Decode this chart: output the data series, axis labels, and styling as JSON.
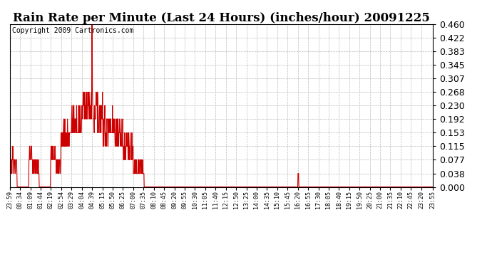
{
  "title": "Rain Rate per Minute (Last 24 Hours) (inches/hour) 20091225",
  "copyright": "Copyright 2009 Cartronics.com",
  "line_color": "#cc0000",
  "bg_color": "#ffffff",
  "grid_color": "#bbbbbb",
  "ylim": [
    0.0,
    0.46
  ],
  "yticks": [
    0.0,
    0.038,
    0.077,
    0.115,
    0.153,
    0.192,
    0.23,
    0.268,
    0.307,
    0.345,
    0.383,
    0.422,
    0.46
  ],
  "xtick_labels": [
    "23:59",
    "00:34",
    "01:09",
    "01:44",
    "02:19",
    "02:54",
    "03:29",
    "04:04",
    "04:39",
    "05:15",
    "05:50",
    "06:25",
    "07:00",
    "07:35",
    "08:10",
    "08:45",
    "09:20",
    "09:55",
    "10:30",
    "11:05",
    "11:40",
    "12:15",
    "12:50",
    "13:25",
    "14:00",
    "14:35",
    "15:10",
    "15:45",
    "16:20",
    "16:55",
    "17:30",
    "18:05",
    "18:40",
    "19:15",
    "19:50",
    "20:25",
    "21:00",
    "21:35",
    "22:10",
    "22:45",
    "23:20",
    "23:55"
  ],
  "xtick_positions_ratio": [
    0.0,
    0.0243,
    0.0486,
    0.0729,
    0.0972,
    0.1215,
    0.1458,
    0.1701,
    0.1944,
    0.2188,
    0.2431,
    0.2674,
    0.2917,
    0.316,
    0.3403,
    0.3646,
    0.3889,
    0.4132,
    0.4375,
    0.4618,
    0.4861,
    0.5104,
    0.5347,
    0.559,
    0.5833,
    0.6076,
    0.6319,
    0.6563,
    0.6806,
    0.7049,
    0.7292,
    0.7535,
    0.7778,
    0.8021,
    0.8264,
    0.8507,
    0.875,
    0.8993,
    0.9236,
    0.9479,
    0.9722,
    1.0
  ],
  "title_fontsize": 12,
  "copyright_fontsize": 7,
  "ytick_fontsize": 9,
  "xtick_fontsize": 6
}
